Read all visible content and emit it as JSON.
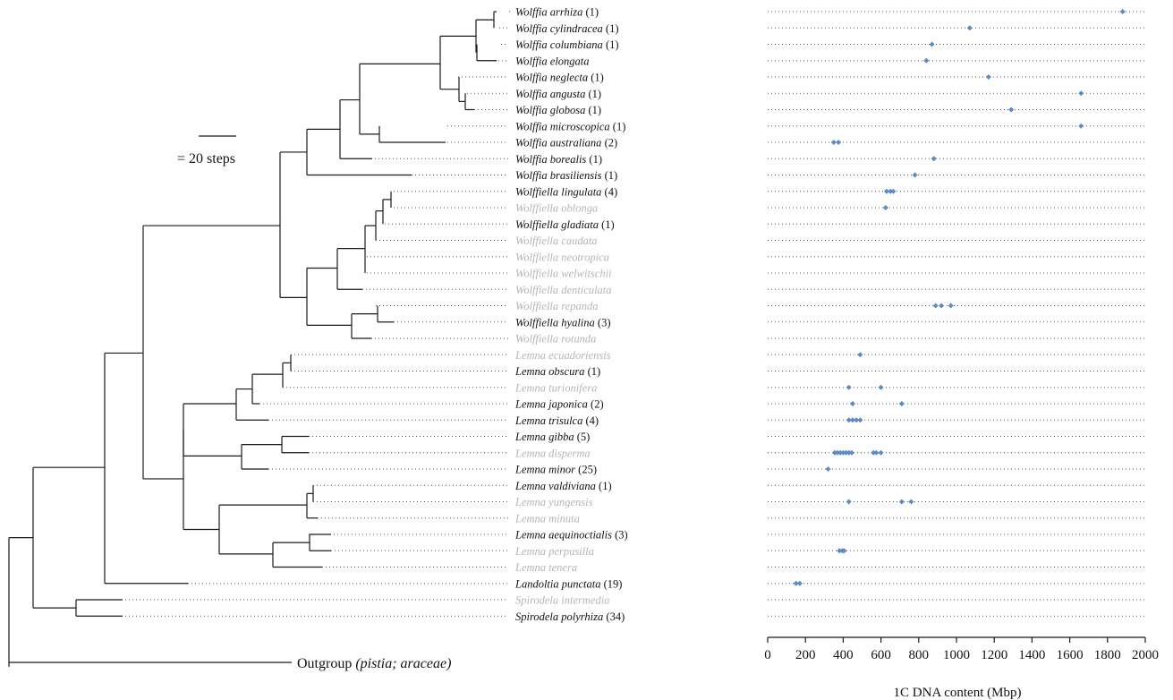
{
  "scale": {
    "label": "= 20 steps"
  },
  "outgroup": {
    "name": "Outgroup",
    "detail": "(pistia; araceae)"
  },
  "taxa": [
    {
      "name": "Wolffia arrhiza",
      "count": "(1)",
      "color": "#111111"
    },
    {
      "name": "Wolffia cylindracea",
      "count": "(1)",
      "color": "#111111"
    },
    {
      "name": "Wolffia columbiana",
      "count": "(1)",
      "color": "#111111"
    },
    {
      "name": "Wolffia elongata",
      "count": "",
      "color": "#111111"
    },
    {
      "name": "Wolffia neglecta",
      "count": "(1)",
      "color": "#111111"
    },
    {
      "name": "Wolffia angusta",
      "count": "(1)",
      "color": "#111111"
    },
    {
      "name": "Wolffia globosa",
      "count": "(1)",
      "color": "#111111"
    },
    {
      "name": "Wolffia microscopica",
      "count": "(1)",
      "color": "#111111"
    },
    {
      "name": "Wolffia australiana",
      "count": "(2)",
      "color": "#111111"
    },
    {
      "name": "Wolffia borealis",
      "count": "(1)",
      "color": "#111111"
    },
    {
      "name": "Wolffia brasiliensis",
      "count": "(1)",
      "color": "#111111"
    },
    {
      "name": "Wolffiella lingulata",
      "count": "(4)",
      "color": "#111111"
    },
    {
      "name": "Wolffiella oblonga",
      "count": "",
      "color": "#b5b5b5"
    },
    {
      "name": "Wolffiella gladiata",
      "count": "(1)",
      "color": "#111111"
    },
    {
      "name": "Wolffiella caudata",
      "count": "",
      "color": "#b5b5b5"
    },
    {
      "name": "Wolffiella neotropica",
      "count": "",
      "color": "#b5b5b5"
    },
    {
      "name": "Wolffiella welwitschii",
      "count": "",
      "color": "#b5b5b5"
    },
    {
      "name": "Wolffiella denticulata",
      "count": "",
      "color": "#b5b5b5"
    },
    {
      "name": "Wolffiella repanda",
      "count": "",
      "color": "#b5b5b5"
    },
    {
      "name": "Wolffiella hyalina",
      "count": "(3)",
      "color": "#111111"
    },
    {
      "name": "Wolffiella rotunda",
      "count": "",
      "color": "#b5b5b5"
    },
    {
      "name": "Lemna ecuadoriensis",
      "count": "",
      "color": "#b5b5b5"
    },
    {
      "name": "Lemna obscura",
      "count": "(1)",
      "color": "#111111"
    },
    {
      "name": "Lemna turionifera",
      "count": "",
      "color": "#b5b5b5"
    },
    {
      "name": "Lemna japonica",
      "count": "(2)",
      "color": "#111111"
    },
    {
      "name": "Lemna trisulca",
      "count": "(4)",
      "color": "#111111"
    },
    {
      "name": "Lemna gibba",
      "count": "(5)",
      "color": "#111111"
    },
    {
      "name": "Lemna disperma",
      "count": "",
      "color": "#b5b5b5"
    },
    {
      "name": "Lemna minor",
      "count": "(25)",
      "color": "#111111"
    },
    {
      "name": "Lemna valdiviana",
      "count": "(1)",
      "color": "#111111"
    },
    {
      "name": "Lemna yungensis",
      "count": "",
      "color": "#b5b5b5"
    },
    {
      "name": "Lemna minuta",
      "count": "",
      "color": "#b5b5b5"
    },
    {
      "name": "Lemna aequinoctialis",
      "count": "(3)",
      "color": "#111111"
    },
    {
      "name": "Lemna perpusilla",
      "count": "",
      "color": "#b5b5b5"
    },
    {
      "name": "Lemna tenera",
      "count": "",
      "color": "#b5b5b5"
    },
    {
      "name": "Landoltia punctata",
      "count": "(19)",
      "color": "#111111"
    },
    {
      "name": "Spirodela intermedia",
      "count": "",
      "color": "#b5b5b5"
    },
    {
      "name": "Spirodela polyrhiza",
      "count": "(34)",
      "color": "#111111"
    }
  ],
  "chart_data": {
    "type": "scatter",
    "xlabel": "1C DNA content (Mbp)",
    "xlim": [
      0,
      2000
    ],
    "xticks": [
      0,
      200,
      400,
      600,
      800,
      1000,
      1200,
      1400,
      1600,
      1800,
      2000
    ],
    "point_color": "#5b8ac6",
    "rows": [
      {
        "taxon": "Wolffia arrhiza",
        "values": [
          1880
        ]
      },
      {
        "taxon": "Wolffia cylindracea",
        "values": [
          1070
        ]
      },
      {
        "taxon": "Wolffia columbiana",
        "values": [
          870
        ]
      },
      {
        "taxon": "Wolffia elongata",
        "values": [
          840
        ]
      },
      {
        "taxon": "Wolffia neglecta",
        "values": [
          1170
        ]
      },
      {
        "taxon": "Wolffia angusta",
        "values": [
          1660
        ]
      },
      {
        "taxon": "Wolffia globosa",
        "values": [
          1290
        ]
      },
      {
        "taxon": "Wolffia microscopica",
        "values": [
          1660
        ]
      },
      {
        "taxon": "Wolffia australiana",
        "values": [
          350,
          375
        ]
      },
      {
        "taxon": "Wolffia borealis",
        "values": [
          880
        ]
      },
      {
        "taxon": "Wolffia brasiliensis",
        "values": [
          780
        ]
      },
      {
        "taxon": "Wolffiella lingulata",
        "values": [
          630,
          650,
          665
        ]
      },
      {
        "taxon": "Wolffiella oblonga",
        "values": [
          625
        ]
      },
      {
        "taxon": "Wolffiella gladiata",
        "values": []
      },
      {
        "taxon": "Wolffiella caudata",
        "values": []
      },
      {
        "taxon": "Wolffiella neotropica",
        "values": []
      },
      {
        "taxon": "Wolffiella welwitschii",
        "values": []
      },
      {
        "taxon": "Wolffiella denticulata",
        "values": []
      },
      {
        "taxon": "Wolffiella repanda",
        "values": [
          890,
          920,
          970
        ]
      },
      {
        "taxon": "Wolffiella hyalina",
        "values": []
      },
      {
        "taxon": "Wolffiella rotunda",
        "values": []
      },
      {
        "taxon": "Lemna ecuadoriensis",
        "values": [
          490
        ]
      },
      {
        "taxon": "Lemna obscura",
        "values": []
      },
      {
        "taxon": "Lemna turionifera",
        "values": [
          430,
          600
        ]
      },
      {
        "taxon": "Lemna japonica",
        "values": [
          450,
          710
        ]
      },
      {
        "taxon": "Lemna trisulca",
        "values": [
          430,
          450,
          470,
          490
        ]
      },
      {
        "taxon": "Lemna gibba",
        "values": []
      },
      {
        "taxon": "Lemna disperma",
        "values": [
          355,
          370,
          385,
          400,
          415,
          430,
          445,
          560,
          575,
          600
        ]
      },
      {
        "taxon": "Lemna minor",
        "values": [
          320
        ]
      },
      {
        "taxon": "Lemna valdiviana",
        "values": []
      },
      {
        "taxon": "Lemna yungensis",
        "values": [
          430,
          710,
          760
        ]
      },
      {
        "taxon": "Lemna minuta",
        "values": []
      },
      {
        "taxon": "Lemna aequinoctialis",
        "values": []
      },
      {
        "taxon": "Lemna perpusilla",
        "values": [
          380,
          395,
          405
        ]
      },
      {
        "taxon": "Lemna tenera",
        "values": []
      },
      {
        "taxon": "Landoltia punctata",
        "values": [
          150,
          170
        ]
      },
      {
        "taxon": "Spirodela intermedia",
        "values": []
      },
      {
        "taxon": "Spirodela polyrhiza",
        "values": []
      }
    ]
  }
}
